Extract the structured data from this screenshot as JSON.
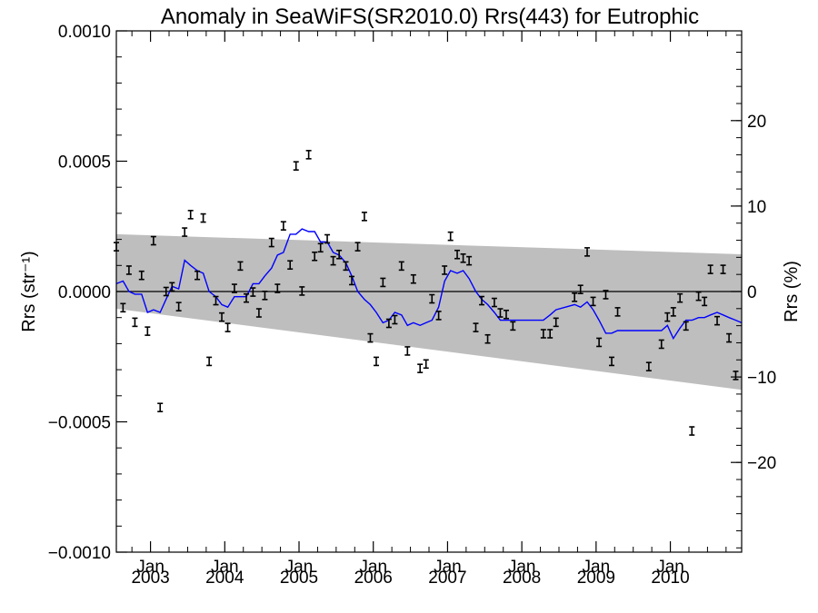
{
  "chart_data": {
    "type": "line",
    "title": "Anomaly in SeaWiFS(SR2010.0) Rrs(443) for Eutrophic",
    "ylabel": "Rrs (str⁻¹)",
    "y2label": "Rrs (%)",
    "ylim": [
      -0.001,
      0.001
    ],
    "y2lim": [
      -30.5,
      30.5
    ],
    "xlim": [
      2002.54,
      2010.96
    ],
    "yticks": [
      {
        "value": 0.001,
        "label": "0.0010"
      },
      {
        "value": 0.0005,
        "label": "0.0005"
      },
      {
        "value": 0.0,
        "label": "0.0000"
      },
      {
        "value": -0.0005,
        "label": "−0.0005"
      },
      {
        "value": -0.001,
        "label": "−0.0010"
      }
    ],
    "y2ticks": [
      {
        "value": 20,
        "label": "20"
      },
      {
        "value": 10,
        "label": "10"
      },
      {
        "value": 0,
        "label": "0"
      },
      {
        "value": -10,
        "label": "−10"
      },
      {
        "value": -20,
        "label": "−20"
      }
    ],
    "xticks": [
      {
        "value": 2003.0,
        "month": "Jan",
        "year": "2003"
      },
      {
        "value": 2004.0,
        "month": "Jan",
        "year": "2004"
      },
      {
        "value": 2005.0,
        "month": "Jan",
        "year": "2005"
      },
      {
        "value": 2006.0,
        "month": "Jan",
        "year": "2006"
      },
      {
        "value": 2007.0,
        "month": "Jan",
        "year": "2007"
      },
      {
        "value": 2008.0,
        "month": "Jan",
        "year": "2008"
      },
      {
        "value": 2009.0,
        "month": "Jan",
        "year": "2009"
      },
      {
        "value": 2010.0,
        "month": "Jan",
        "year": "2010"
      }
    ],
    "band": {
      "x": [
        2002.54,
        2010.96
      ],
      "upper": [
        0.00022,
        0.000143
      ],
      "lower": [
        -6.6e-05,
        -0.000377
      ]
    },
    "points": [
      {
        "x": 2002.54,
        "y": 0.000172
      },
      {
        "x": 2002.63,
        "y": -6.2e-05
      },
      {
        "x": 2002.71,
        "y": 8.2e-05
      },
      {
        "x": 2002.79,
        "y": -0.000118
      },
      {
        "x": 2002.88,
        "y": 6.2e-05
      },
      {
        "x": 2002.96,
        "y": -0.000152
      },
      {
        "x": 2003.04,
        "y": 0.000195
      },
      {
        "x": 2003.13,
        "y": -0.000445
      },
      {
        "x": 2003.21,
        "y": 0.0
      },
      {
        "x": 2003.29,
        "y": 1.8e-05
      },
      {
        "x": 2003.38,
        "y": -5.8e-05
      },
      {
        "x": 2003.46,
        "y": 0.000228
      },
      {
        "x": 2003.54,
        "y": 0.000295
      },
      {
        "x": 2003.63,
        "y": 6.2e-05
      },
      {
        "x": 2003.71,
        "y": 0.000282
      },
      {
        "x": 2003.79,
        "y": -0.000268
      },
      {
        "x": 2003.88,
        "y": -3.5e-05
      },
      {
        "x": 2003.96,
        "y": -9.8e-05
      },
      {
        "x": 2004.04,
        "y": -0.000138
      },
      {
        "x": 2004.13,
        "y": 1.2e-05
      },
      {
        "x": 2004.21,
        "y": 9.8e-05
      },
      {
        "x": 2004.29,
        "y": -2.5e-05
      },
      {
        "x": 2004.38,
        "y": -2e-06
      },
      {
        "x": 2004.46,
        "y": -8.2e-05
      },
      {
        "x": 2004.54,
        "y": -1.5e-05
      },
      {
        "x": 2004.63,
        "y": 0.000188
      },
      {
        "x": 2004.71,
        "y": 1.2e-05
      },
      {
        "x": 2004.79,
        "y": 0.000252
      },
      {
        "x": 2004.88,
        "y": 0.000102
      },
      {
        "x": 2004.96,
        "y": 0.000482
      },
      {
        "x": 2005.04,
        "y": 2e-06
      },
      {
        "x": 2005.13,
        "y": 0.000525
      },
      {
        "x": 2005.21,
        "y": 0.000135
      },
      {
        "x": 2005.29,
        "y": 0.000168
      },
      {
        "x": 2005.38,
        "y": 0.000202
      },
      {
        "x": 2005.46,
        "y": 0.000118
      },
      {
        "x": 2005.54,
        "y": 0.000142
      },
      {
        "x": 2005.63,
        "y": 9.8e-05
      },
      {
        "x": 2005.71,
        "y": 4.2e-05
      },
      {
        "x": 2005.79,
        "y": 0.000172
      },
      {
        "x": 2005.88,
        "y": 0.000288
      },
      {
        "x": 2005.96,
        "y": -0.000178
      },
      {
        "x": 2006.04,
        "y": -0.000268
      },
      {
        "x": 2006.13,
        "y": 3.5e-05
      },
      {
        "x": 2006.21,
        "y": -0.000122
      },
      {
        "x": 2006.29,
        "y": -0.000108
      },
      {
        "x": 2006.38,
        "y": 9.8e-05
      },
      {
        "x": 2006.46,
        "y": -0.000228
      },
      {
        "x": 2006.54,
        "y": 4.8e-05
      },
      {
        "x": 2006.63,
        "y": -0.000295
      },
      {
        "x": 2006.71,
        "y": -0.000278
      },
      {
        "x": 2006.79,
        "y": -2.8e-05
      },
      {
        "x": 2006.88,
        "y": -9.2e-05
      },
      {
        "x": 2006.96,
        "y": 8.2e-05
      },
      {
        "x": 2007.04,
        "y": 0.000212
      },
      {
        "x": 2007.13,
        "y": 0.000142
      },
      {
        "x": 2007.21,
        "y": 0.000128
      },
      {
        "x": 2007.29,
        "y": 0.000118
      },
      {
        "x": 2007.38,
        "y": -0.000138
      },
      {
        "x": 2007.46,
        "y": -3.5e-05
      },
      {
        "x": 2007.54,
        "y": -0.000182
      },
      {
        "x": 2007.63,
        "y": -4.2e-05
      },
      {
        "x": 2007.71,
        "y": -8.2e-05
      },
      {
        "x": 2007.79,
        "y": -8.8e-05
      },
      {
        "x": 2007.88,
        "y": -0.000132
      },
      {
        "x": 2008.29,
        "y": -0.000162
      },
      {
        "x": 2008.38,
        "y": -0.000162
      },
      {
        "x": 2008.46,
        "y": -0.000118
      },
      {
        "x": 2008.71,
        "y": -2.2e-05
      },
      {
        "x": 2008.79,
        "y": 8e-06
      },
      {
        "x": 2008.88,
        "y": 0.000152
      },
      {
        "x": 2008.96,
        "y": -3.8e-05
      },
      {
        "x": 2009.04,
        "y": -0.000195
      },
      {
        "x": 2009.13,
        "y": -1.2e-05
      },
      {
        "x": 2009.21,
        "y": -0.000268
      },
      {
        "x": 2009.29,
        "y": -7.8e-05
      },
      {
        "x": 2009.71,
        "y": -0.000288
      },
      {
        "x": 2009.88,
        "y": -0.000202
      },
      {
        "x": 2009.96,
        "y": -9.8e-05
      },
      {
        "x": 2010.04,
        "y": -7.8e-05
      },
      {
        "x": 2010.13,
        "y": -2.5e-05
      },
      {
        "x": 2010.21,
        "y": -0.000132
      },
      {
        "x": 2010.29,
        "y": -0.000535
      },
      {
        "x": 2010.38,
        "y": -1.8e-05
      },
      {
        "x": 2010.46,
        "y": -3.8e-05
      },
      {
        "x": 2010.54,
        "y": 8.5e-05
      },
      {
        "x": 2010.63,
        "y": -0.000112
      },
      {
        "x": 2010.71,
        "y": 8.5e-05
      },
      {
        "x": 2010.79,
        "y": -0.000178
      },
      {
        "x": 2010.88,
        "y": -0.000322
      }
    ],
    "mean_line": {
      "color": "#0000ff",
      "x": [
        2002.54,
        2002.63,
        2002.71,
        2002.79,
        2002.88,
        2002.96,
        2003.04,
        2003.13,
        2003.21,
        2003.29,
        2003.38,
        2003.46,
        2003.54,
        2003.63,
        2003.71,
        2003.79,
        2003.88,
        2003.96,
        2004.04,
        2004.13,
        2004.21,
        2004.29,
        2004.38,
        2004.46,
        2004.54,
        2004.63,
        2004.71,
        2004.79,
        2004.88,
        2004.96,
        2005.04,
        2005.13,
        2005.21,
        2005.29,
        2005.38,
        2005.46,
        2005.54,
        2005.63,
        2005.71,
        2005.79,
        2005.88,
        2005.96,
        2006.04,
        2006.13,
        2006.21,
        2006.29,
        2006.38,
        2006.46,
        2006.54,
        2006.63,
        2006.71,
        2006.79,
        2006.88,
        2006.96,
        2007.04,
        2007.13,
        2007.21,
        2007.29,
        2007.38,
        2007.46,
        2007.54,
        2007.63,
        2007.71,
        2007.79,
        2007.88,
        2008.29,
        2008.38,
        2008.46,
        2008.71,
        2008.79,
        2008.88,
        2008.96,
        2009.04,
        2009.13,
        2009.21,
        2009.29,
        2009.71,
        2009.88,
        2009.96,
        2010.04,
        2010.13,
        2010.21,
        2010.29,
        2010.38,
        2010.46,
        2010.54,
        2010.63,
        2010.71,
        2010.79,
        2010.88,
        2010.96
      ],
      "y": [
        3e-05,
        4e-05,
        0.0,
        -1e-05,
        -1e-05,
        -8e-05,
        -7e-05,
        -8e-05,
        -3e-05,
        2e-05,
        1e-05,
        0.00012,
        0.0001,
        8e-05,
        7e-05,
        0.0,
        -2e-05,
        -5e-05,
        -6e-05,
        -2e-05,
        -2e-05,
        -2e-05,
        3e-05,
        3e-05,
        6e-05,
        9e-05,
        0.00014,
        0.00015,
        0.00022,
        0.00022,
        0.00024,
        0.00023,
        0.00023,
        0.00019,
        0.00019,
        0.00015,
        0.00014,
        0.00011,
        6e-05,
        0.0,
        -3e-05,
        -5e-05,
        -8e-05,
        -0.00012,
        -0.00011,
        -8e-05,
        -9e-05,
        -0.00013,
        -0.00012,
        -0.00013,
        -0.00012,
        -0.00011,
        -6e-05,
        4e-05,
        8e-05,
        7e-05,
        8e-05,
        5e-05,
        0.0,
        -3e-05,
        -5e-05,
        -8e-05,
        -0.00011,
        -0.00011,
        -0.00011,
        -0.00011,
        -9e-05,
        -7e-05,
        -5e-05,
        -6e-05,
        -4e-05,
        -7e-05,
        -0.00011,
        -0.00016,
        -0.00016,
        -0.00015,
        -0.00015,
        -0.00015,
        -0.00013,
        -0.00018,
        -0.00014,
        -0.00011,
        -0.00011,
        -0.0001,
        -0.0001,
        -9e-05,
        -8e-05,
        -9e-05,
        -0.0001,
        -0.00011,
        -0.00012
      ]
    }
  }
}
